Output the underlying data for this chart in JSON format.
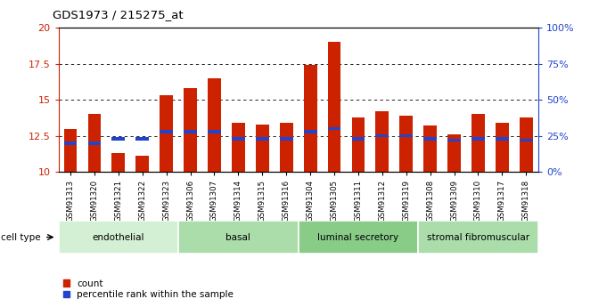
{
  "title": "GDS1973 / 215275_at",
  "samples": [
    "GSM91313",
    "GSM91320",
    "GSM91321",
    "GSM91322",
    "GSM91323",
    "GSM91306",
    "GSM91307",
    "GSM91314",
    "GSM91315",
    "GSM91316",
    "GSM91304",
    "GSM91305",
    "GSM91311",
    "GSM91312",
    "GSM91319",
    "GSM91308",
    "GSM91309",
    "GSM91310",
    "GSM91317",
    "GSM91318"
  ],
  "counts": [
    13.0,
    14.0,
    11.3,
    11.1,
    15.3,
    15.8,
    16.5,
    13.4,
    13.3,
    13.4,
    17.4,
    19.0,
    13.8,
    14.2,
    13.9,
    13.2,
    12.6,
    14.0,
    13.4,
    13.8
  ],
  "percentile_ranks": [
    12.0,
    12.0,
    12.3,
    12.3,
    12.8,
    12.8,
    12.8,
    12.3,
    12.3,
    12.3,
    12.8,
    13.0,
    12.3,
    12.5,
    12.5,
    12.3,
    12.2,
    12.3,
    12.3,
    12.2
  ],
  "cell_groups": [
    {
      "label": "endothelial",
      "start": 0,
      "end": 5
    },
    {
      "label": "basal",
      "start": 5,
      "end": 10
    },
    {
      "label": "luminal secretory",
      "start": 10,
      "end": 15
    },
    {
      "label": "stromal fibromuscular",
      "start": 15,
      "end": 20
    }
  ],
  "group_colors": [
    "#d4f0d4",
    "#aaddaa",
    "#88cc88",
    "#aaddaa"
  ],
  "ylim": [
    10,
    20
  ],
  "y_left_ticks": [
    10,
    12.5,
    15,
    17.5,
    20
  ],
  "y_right_tick_positions": [
    10,
    12.5,
    15,
    17.5,
    20
  ],
  "y_right_labels": [
    "0%",
    "25%",
    "50%",
    "75%",
    "100%"
  ],
  "bar_color": "#cc2200",
  "percentile_color": "#2244cc",
  "bar_width": 0.55,
  "tick_label_color_left": "#cc2200",
  "tick_label_color_right": "#2244cc",
  "grid_lines": [
    12.5,
    15.0,
    17.5
  ],
  "legend_count_label": "count",
  "legend_percentile_label": "percentile rank within the sample",
  "cell_type_label": "cell type",
  "bg_color": "#ffffff"
}
